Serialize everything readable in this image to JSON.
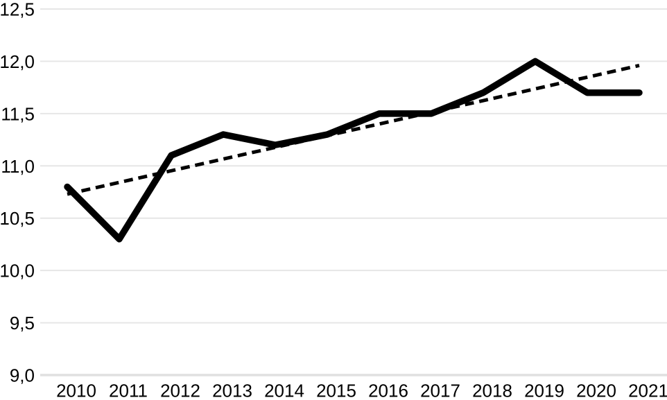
{
  "chart_data": {
    "type": "line",
    "title": "",
    "xlabel": "",
    "ylabel": "",
    "categories": [
      "2010",
      "2011",
      "2012",
      "2013",
      "2014",
      "2015",
      "2016",
      "2017",
      "2018",
      "2019",
      "2020",
      "2021"
    ],
    "series": [
      {
        "name": "data-series",
        "style": "solid",
        "color": "#000000",
        "values": [
          10.8,
          10.3,
          11.1,
          11.3,
          11.2,
          11.3,
          11.5,
          11.5,
          11.7,
          12.0,
          11.7,
          11.7
        ]
      }
    ],
    "trendline": {
      "name": "linear-trendline",
      "style": "dashed",
      "color": "#000000",
      "start_value": 10.73,
      "end_value": 11.96
    },
    "yticks": [
      {
        "value": 12.5,
        "label": "12,5"
      },
      {
        "value": 12.0,
        "label": "12,0"
      },
      {
        "value": 11.5,
        "label": "11,5"
      },
      {
        "value": 11.0,
        "label": "11,0"
      },
      {
        "value": 10.5,
        "label": "10,5"
      },
      {
        "value": 10.0,
        "label": "10,0"
      },
      {
        "value": 9.5,
        "label": "9,5"
      },
      {
        "value": 9.0,
        "label": "9,0"
      }
    ],
    "ylim": [
      9.0,
      12.5
    ],
    "grid": "horizontal",
    "legend": "none",
    "colors": {
      "series": "#000000",
      "trendline": "#000000",
      "gridline": "#e6e6e6",
      "baseline_gridline": "#e0e0e0",
      "text": "#000000",
      "background": "#ffffff"
    }
  }
}
